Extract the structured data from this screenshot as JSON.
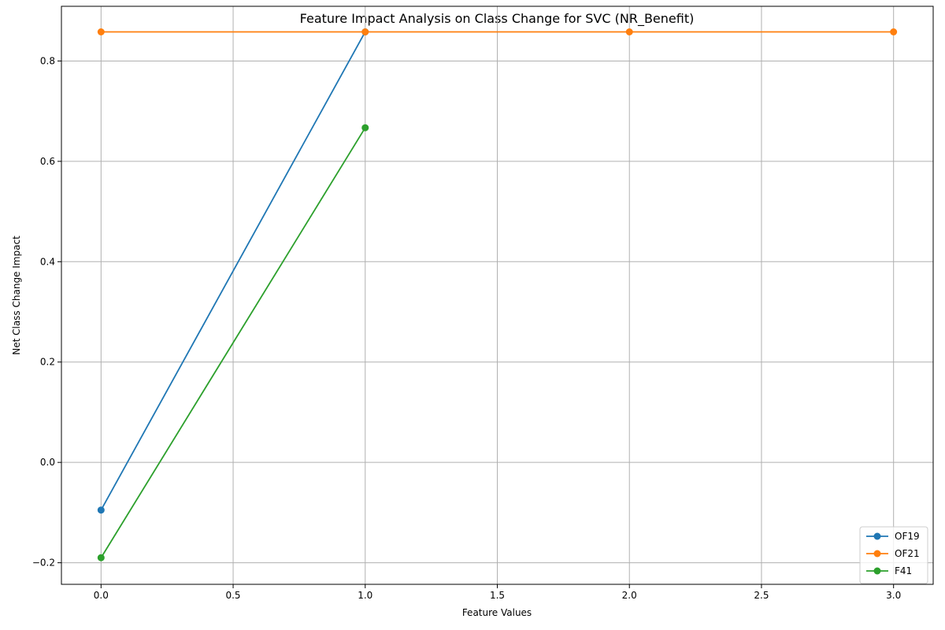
{
  "chart_data": {
    "type": "line",
    "title": "Feature Impact Analysis on Class Change for SVC (NR_Benefit)",
    "xlabel": "Feature Values",
    "ylabel": "Net Class Change Impact",
    "xlim": [
      -0.15,
      3.15
    ],
    "ylim": [
      -0.243,
      0.909
    ],
    "x_ticks": [
      0.0,
      0.5,
      1.0,
      1.5,
      2.0,
      2.5,
      3.0
    ],
    "x_tick_labels": [
      "0.0",
      "0.5",
      "1.0",
      "1.5",
      "2.0",
      "2.5",
      "3.0"
    ],
    "y_ticks": [
      -0.2,
      0.0,
      0.2,
      0.4,
      0.6,
      0.8
    ],
    "y_tick_labels": [
      "−0.2",
      "0.0",
      "0.2",
      "0.4",
      "0.6",
      "0.8"
    ],
    "grid": true,
    "legend_position": "bottom-right",
    "series": [
      {
        "name": "OF19",
        "color": "#1f77b4",
        "x": [
          0,
          1
        ],
        "y": [
          -0.095,
          0.858
        ]
      },
      {
        "name": "OF21",
        "color": "#ff7f0e",
        "x": [
          0,
          1,
          2,
          3
        ],
        "y": [
          0.858,
          0.858,
          0.858,
          0.858
        ]
      },
      {
        "name": "F41",
        "color": "#2ca02c",
        "x": [
          0,
          1
        ],
        "y": [
          -0.19,
          0.667
        ]
      }
    ]
  }
}
